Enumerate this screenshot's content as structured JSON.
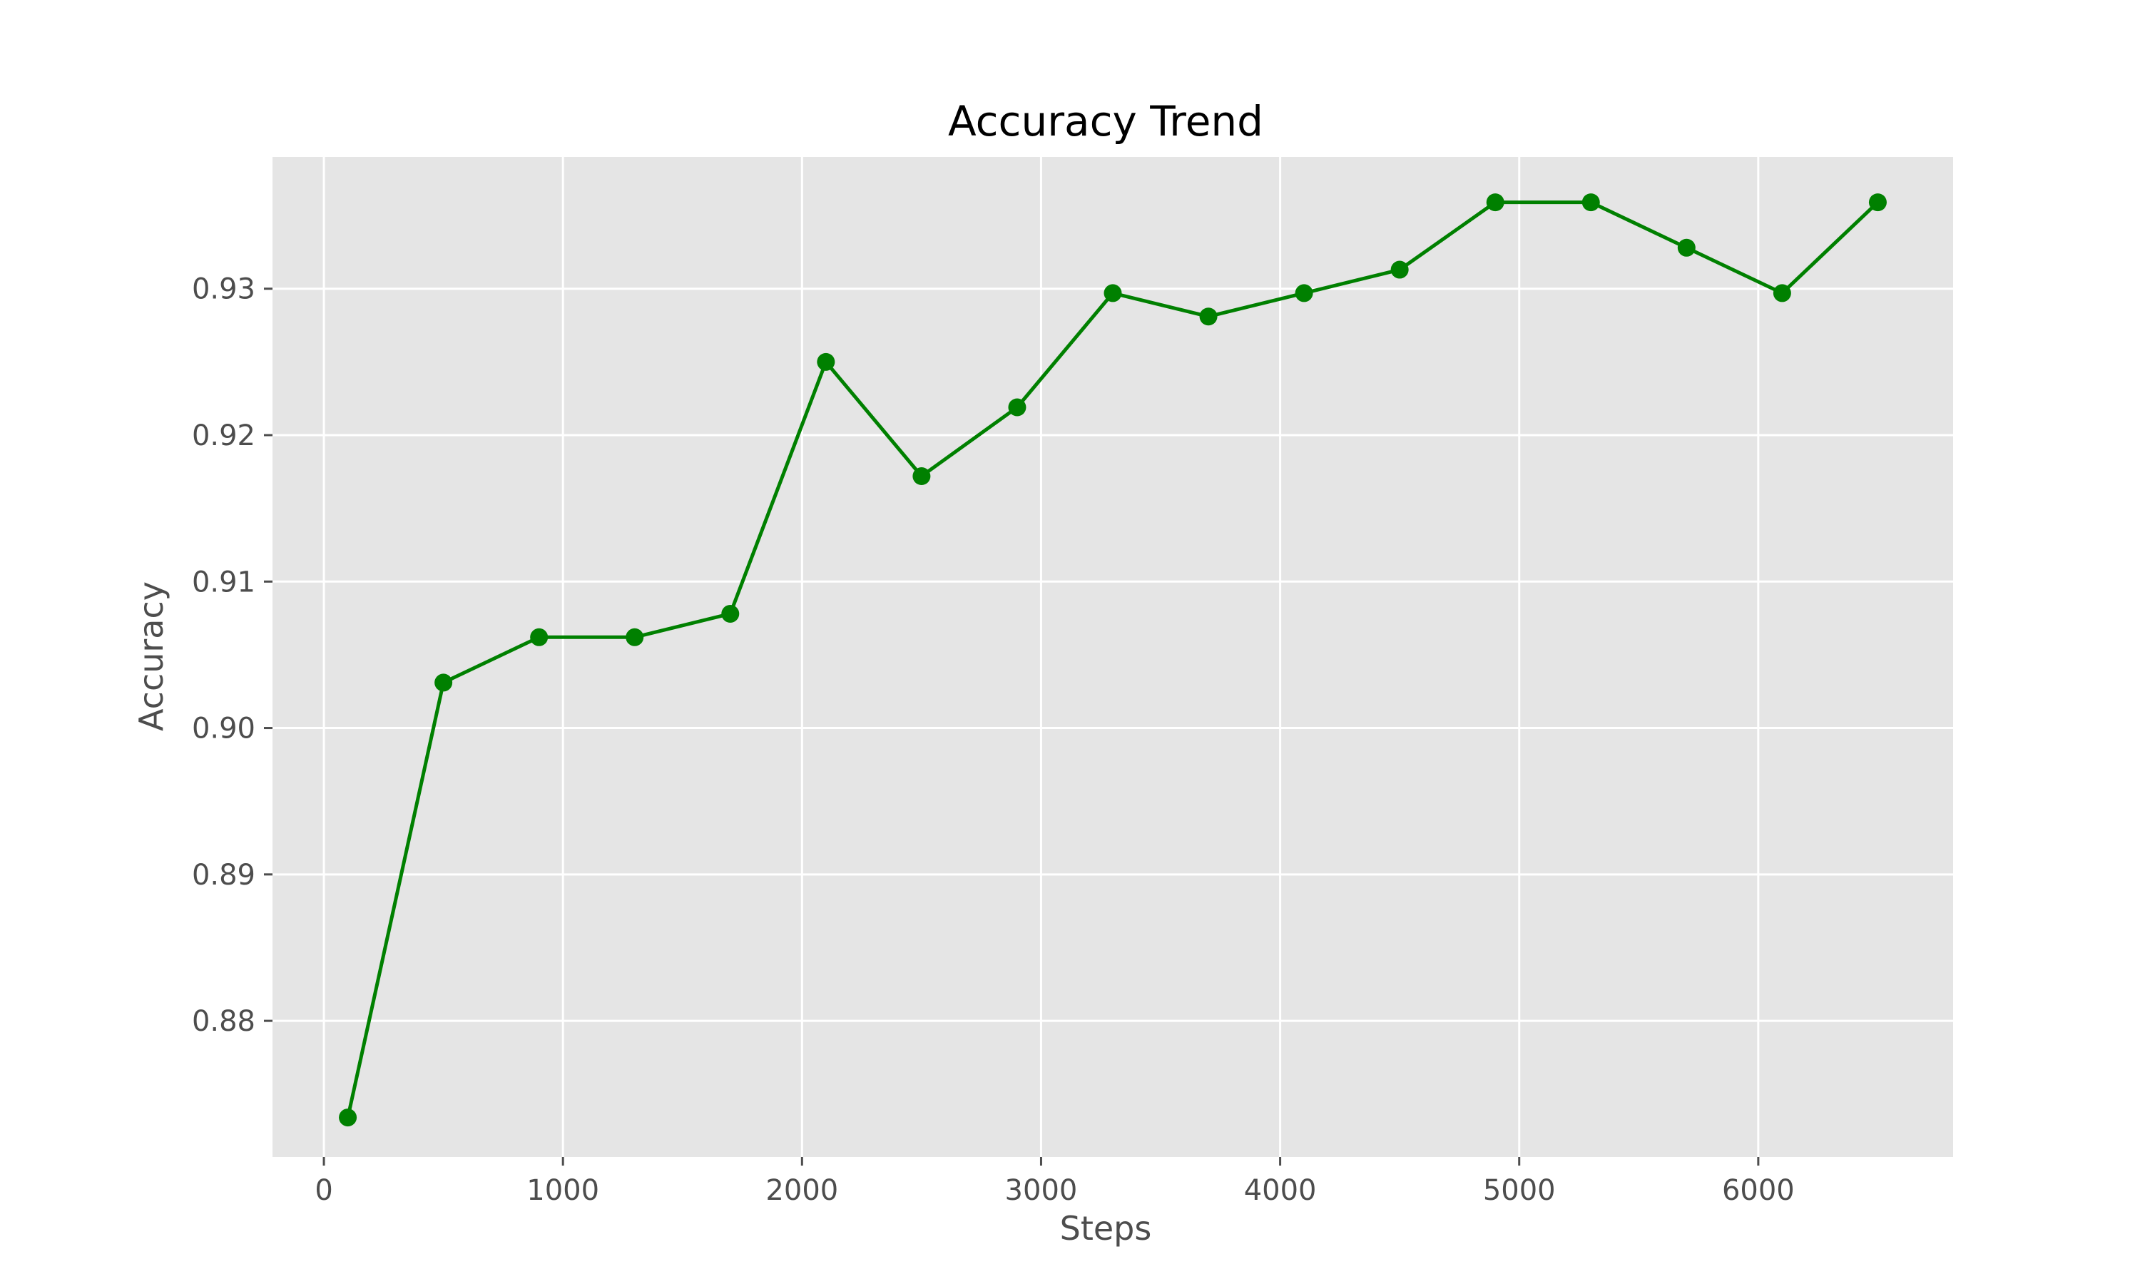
{
  "chart_data": {
    "type": "line",
    "title": "Accuracy Trend",
    "xlabel": "Steps",
    "ylabel": "Accuracy",
    "xlim": [
      -215,
      6815
    ],
    "ylim": [
      0.8707,
      0.939
    ],
    "xticks": [
      0,
      1000,
      2000,
      3000,
      4000,
      5000,
      6000
    ],
    "yticks": [
      0.88,
      0.89,
      0.9,
      0.91,
      0.92,
      0.93
    ],
    "xtick_labels": [
      "0",
      "1000",
      "2000",
      "3000",
      "4000",
      "5000",
      "6000"
    ],
    "ytick_labels": [
      "0.88",
      "0.89",
      "0.90",
      "0.91",
      "0.92",
      "0.93"
    ],
    "grid": true,
    "style": "ggplot",
    "colors": {
      "line": "#008000",
      "plot_background": "#e5e5e5",
      "grid": "#ffffff"
    },
    "series": [
      {
        "x": [
          100,
          500,
          900,
          1300,
          1700,
          2100,
          2500,
          2900,
          3300,
          3700,
          4100,
          4500,
          4900,
          5300,
          5700,
          6100,
          6500
        ],
        "y": [
          0.8734,
          0.9031,
          0.9062,
          0.9062,
          0.9078,
          0.925,
          0.9172,
          0.9219,
          0.9297,
          0.9281,
          0.9297,
          0.9313,
          0.9359,
          0.9359,
          0.9328,
          0.9297,
          0.9359
        ],
        "marker": "circle"
      }
    ]
  }
}
